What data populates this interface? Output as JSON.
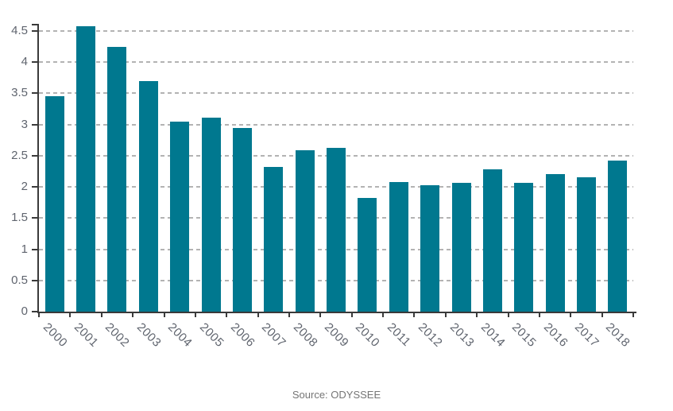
{
  "chart_data": {
    "type": "bar",
    "title": "",
    "xlabel": "",
    "ylabel": "",
    "categories": [
      "2000",
      "2001",
      "2002",
      "2003",
      "2004",
      "2005",
      "2006",
      "2007",
      "2008",
      "2009",
      "2010",
      "2011",
      "2012",
      "2013",
      "2014",
      "2015",
      "2016",
      "2017",
      "2018"
    ],
    "values": [
      3.45,
      4.57,
      4.25,
      3.69,
      3.04,
      3.11,
      2.95,
      2.32,
      2.59,
      2.62,
      1.82,
      2.08,
      2.03,
      2.06,
      2.28,
      2.07,
      2.2,
      2.16,
      2.42
    ],
    "yticks": [
      0,
      0.5,
      1,
      1.5,
      2,
      2.5,
      3,
      3.5,
      4,
      4.5
    ],
    "ylim": [
      0,
      4.6
    ],
    "grid": true,
    "legend_position": "none",
    "source_note": "Source: ODYSSEE"
  },
  "colors": {
    "bar": "#00788f",
    "grid": "#b3b3b3",
    "axis": "#3a3a3a",
    "label": "#5f646e",
    "source": "#757575"
  }
}
